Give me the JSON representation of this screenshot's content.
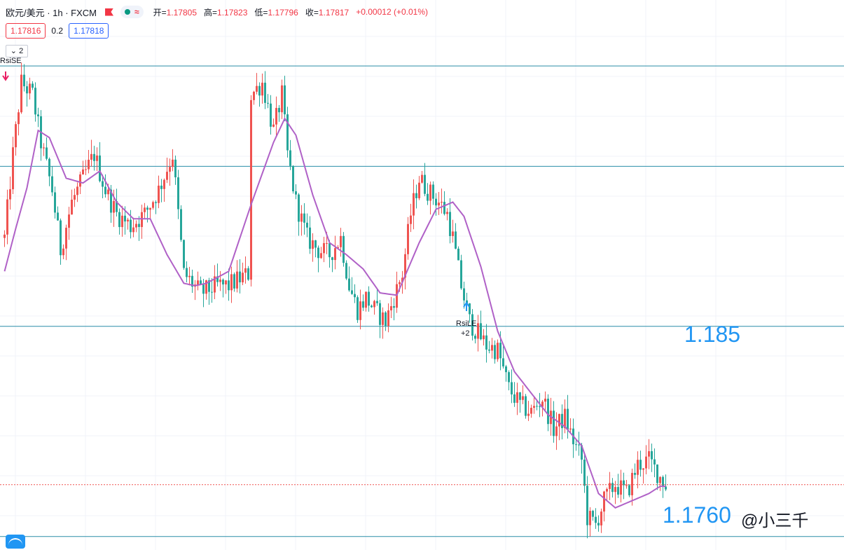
{
  "header": {
    "symbol": "欧元/美元 · 1h · FXCM",
    "status_icon": "≈",
    "ohlc": [
      {
        "label": "开=",
        "value": "1.17805"
      },
      {
        "label": "高=",
        "value": "1.17823"
      },
      {
        "label": "低=",
        "value": "1.17796"
      },
      {
        "label": "收=",
        "value": "1.17817"
      }
    ],
    "change": "+0.00012 (+0.01%)",
    "bid": "1.17816",
    "spread": "0.2",
    "ask": "1.17818",
    "indicators_collapse": "2"
  },
  "annotations": {
    "sell_signal": "RsiSE",
    "buy_signal": "RsiLE",
    "buy_signal_qty": "+2",
    "level_label_high": "1.185",
    "level_label_low": "1.1760",
    "watermark": "@小三千"
  },
  "colors": {
    "up": "#ef5350",
    "down": "#26a69a",
    "ma": "#b061c7",
    "level": "#2a8ea8",
    "current_price": "#ef5350",
    "label_blue": "#2196f3"
  },
  "chart_data": {
    "type": "candlestick",
    "title": "欧元/美元 · 1h · FXCM",
    "xlabel": "",
    "ylabel": "",
    "ylim": [
      1.1752,
      1.1972
    ],
    "horizontal_levels": [
      1.1957,
      1.1915,
      1.1848,
      1.176
    ],
    "current_price": 1.17817,
    "ma_series": [
      {
        "bar": 0,
        "value": 1.1871
      },
      {
        "bar": 4,
        "value": 1.1889
      },
      {
        "bar": 8,
        "value": 1.1906
      },
      {
        "bar": 12,
        "value": 1.193
      },
      {
        "bar": 16,
        "value": 1.1927
      },
      {
        "bar": 22,
        "value": 1.191
      },
      {
        "bar": 28,
        "value": 1.1908
      },
      {
        "bar": 34,
        "value": 1.1913
      },
      {
        "bar": 40,
        "value": 1.19
      },
      {
        "bar": 46,
        "value": 1.1893
      },
      {
        "bar": 52,
        "value": 1.1893
      },
      {
        "bar": 58,
        "value": 1.1878
      },
      {
        "bar": 64,
        "value": 1.1866
      },
      {
        "bar": 68,
        "value": 1.1865
      },
      {
        "bar": 72,
        "value": 1.1866
      },
      {
        "bar": 80,
        "value": 1.1871
      },
      {
        "bar": 88,
        "value": 1.1899
      },
      {
        "bar": 96,
        "value": 1.1925
      },
      {
        "bar": 100,
        "value": 1.1935
      },
      {
        "bar": 104,
        "value": 1.1928
      },
      {
        "bar": 110,
        "value": 1.1903
      },
      {
        "bar": 116,
        "value": 1.1883
      },
      {
        "bar": 122,
        "value": 1.1878
      },
      {
        "bar": 128,
        "value": 1.1872
      },
      {
        "bar": 134,
        "value": 1.1862
      },
      {
        "bar": 140,
        "value": 1.1861
      },
      {
        "bar": 148,
        "value": 1.1883
      },
      {
        "bar": 154,
        "value": 1.1897
      },
      {
        "bar": 160,
        "value": 1.19
      },
      {
        "bar": 164,
        "value": 1.1894
      },
      {
        "bar": 170,
        "value": 1.1873
      },
      {
        "bar": 176,
        "value": 1.1846
      },
      {
        "bar": 182,
        "value": 1.1829
      },
      {
        "bar": 188,
        "value": 1.182
      },
      {
        "bar": 194,
        "value": 1.1811
      },
      {
        "bar": 200,
        "value": 1.1806
      },
      {
        "bar": 206,
        "value": 1.1798
      },
      {
        "bar": 212,
        "value": 1.1778
      },
      {
        "bar": 218,
        "value": 1.1772
      },
      {
        "bar": 224,
        "value": 1.1775
      },
      {
        "bar": 230,
        "value": 1.1778
      },
      {
        "bar": 234,
        "value": 1.1781
      }
    ],
    "close_path": [
      {
        "bar": 0,
        "value": 1.1885
      },
      {
        "bar": 3,
        "value": 1.192
      },
      {
        "bar": 6,
        "value": 1.195
      },
      {
        "bar": 10,
        "value": 1.1945
      },
      {
        "bar": 13,
        "value": 1.1925
      },
      {
        "bar": 17,
        "value": 1.1905
      },
      {
        "bar": 20,
        "value": 1.188
      },
      {
        "bar": 24,
        "value": 1.19
      },
      {
        "bar": 28,
        "value": 1.191
      },
      {
        "bar": 32,
        "value": 1.192
      },
      {
        "bar": 36,
        "value": 1.1905
      },
      {
        "bar": 40,
        "value": 1.1895
      },
      {
        "bar": 45,
        "value": 1.189
      },
      {
        "bar": 50,
        "value": 1.1895
      },
      {
        "bar": 55,
        "value": 1.1905
      },
      {
        "bar": 60,
        "value": 1.192
      },
      {
        "bar": 64,
        "value": 1.187
      },
      {
        "bar": 70,
        "value": 1.1862
      },
      {
        "bar": 76,
        "value": 1.1865
      },
      {
        "bar": 80,
        "value": 1.1865
      },
      {
        "bar": 84,
        "value": 1.1868
      },
      {
        "bar": 87,
        "value": 1.187
      },
      {
        "bar": 88,
        "value": 1.1945
      },
      {
        "bar": 92,
        "value": 1.195
      },
      {
        "bar": 96,
        "value": 1.193
      },
      {
        "bar": 99,
        "value": 1.1945
      },
      {
        "bar": 101,
        "value": 1.192
      },
      {
        "bar": 104,
        "value": 1.19
      },
      {
        "bar": 108,
        "value": 1.1885
      },
      {
        "bar": 112,
        "value": 1.188
      },
      {
        "bar": 116,
        "value": 1.1878
      },
      {
        "bar": 120,
        "value": 1.1885
      },
      {
        "bar": 123,
        "value": 1.1865
      },
      {
        "bar": 126,
        "value": 1.1855
      },
      {
        "bar": 129,
        "value": 1.186
      },
      {
        "bar": 132,
        "value": 1.1855
      },
      {
        "bar": 136,
        "value": 1.185
      },
      {
        "bar": 139,
        "value": 1.186
      },
      {
        "bar": 142,
        "value": 1.187
      },
      {
        "bar": 145,
        "value": 1.1895
      },
      {
        "bar": 148,
        "value": 1.191
      },
      {
        "bar": 151,
        "value": 1.1905
      },
      {
        "bar": 155,
        "value": 1.19
      },
      {
        "bar": 158,
        "value": 1.1895
      },
      {
        "bar": 160,
        "value": 1.1885
      },
      {
        "bar": 163,
        "value": 1.1865
      },
      {
        "bar": 166,
        "value": 1.185
      },
      {
        "bar": 169,
        "value": 1.1845
      },
      {
        "bar": 172,
        "value": 1.184
      },
      {
        "bar": 176,
        "value": 1.1838
      },
      {
        "bar": 180,
        "value": 1.1822
      },
      {
        "bar": 184,
        "value": 1.1815
      },
      {
        "bar": 188,
        "value": 1.1812
      },
      {
        "bar": 192,
        "value": 1.1818
      },
      {
        "bar": 196,
        "value": 1.1805
      },
      {
        "bar": 200,
        "value": 1.181
      },
      {
        "bar": 203,
        "value": 1.18
      },
      {
        "bar": 206,
        "value": 1.1792
      },
      {
        "bar": 208,
        "value": 1.1768
      },
      {
        "bar": 211,
        "value": 1.1765
      },
      {
        "bar": 214,
        "value": 1.1775
      },
      {
        "bar": 218,
        "value": 1.1782
      },
      {
        "bar": 222,
        "value": 1.1778
      },
      {
        "bar": 226,
        "value": 1.179
      },
      {
        "bar": 230,
        "value": 1.1792
      },
      {
        "bar": 234,
        "value": 1.1785
      },
      {
        "bar": 236,
        "value": 1.17817
      }
    ]
  }
}
